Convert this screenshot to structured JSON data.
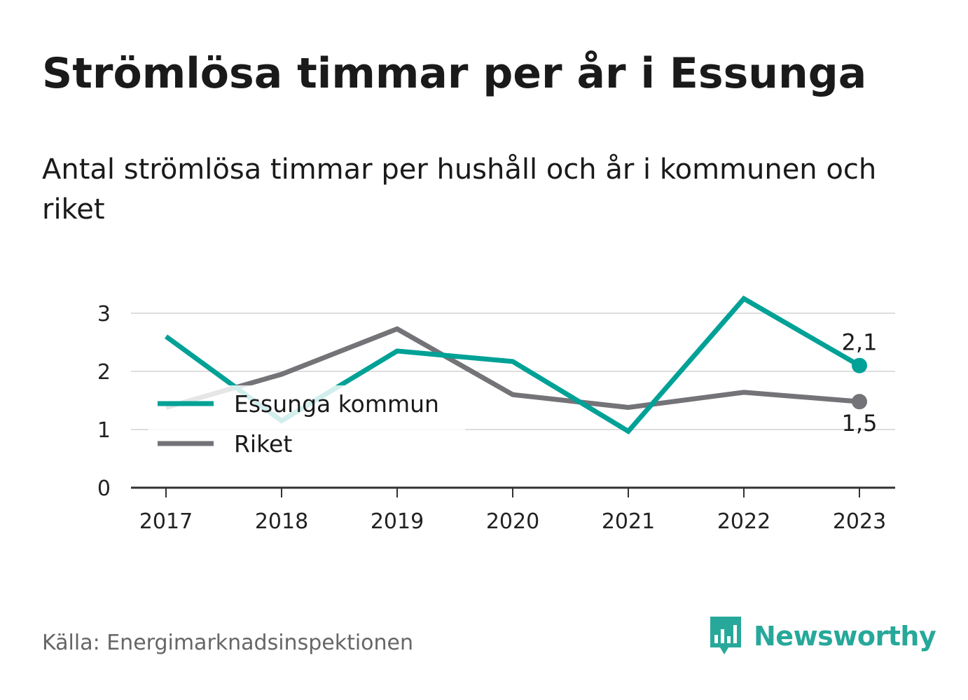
{
  "title": "Strömlösa timmar per år i Essunga",
  "subtitle": "Antal strömlösa timmar per hushåll och år i kommunen och riket",
  "source": "Källa: Energimarknadsinspektionen",
  "brand": {
    "name": "Newsworthy",
    "icon": "newsworthy-logo-icon",
    "color": "#27a89a"
  },
  "chart_data": {
    "type": "line",
    "title": "Strömlösa timmar per år i Essunga",
    "subtitle": "Antal strömlösa timmar per hushåll och år i kommunen och riket",
    "xlabel": "",
    "ylabel": "",
    "x": [
      "2017",
      "2018",
      "2019",
      "2020",
      "2021",
      "2022",
      "2023"
    ],
    "ylim": [
      0,
      3.3
    ],
    "yticks": [
      "0",
      "1",
      "2",
      "3"
    ],
    "grid": true,
    "legend_position": "bottom-left",
    "series": [
      {
        "name": "Essunga kommun",
        "color": "#00a196",
        "values": [
          2.6,
          1.15,
          2.35,
          2.17,
          0.97,
          3.25,
          2.1
        ],
        "end_label": "2,1"
      },
      {
        "name": "Riket",
        "color": "#737378",
        "values": [
          1.38,
          1.95,
          2.73,
          1.6,
          1.38,
          1.64,
          1.48
        ],
        "end_label": "1,5"
      }
    ]
  }
}
